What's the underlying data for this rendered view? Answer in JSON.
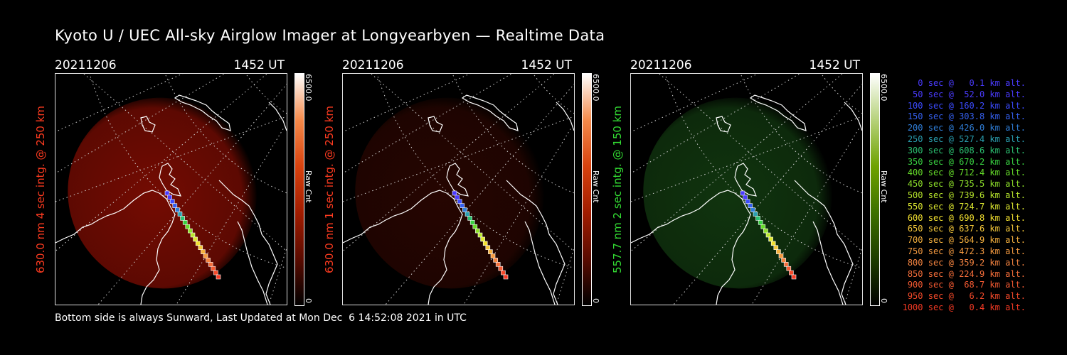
{
  "title": "Kyoto U / UEC All-sky Airglow Imager at Longyearbyen — Realtime Data",
  "footer": "Bottom side is always Sunward, Last Updated at Mon Dec  6 14:52:08 2021 in UTC",
  "panels": [
    {
      "date": "20211206",
      "time": "1452 UT",
      "label": "630.0 nm 4 sec intg. @ 250 km",
      "label_color": "#ff3b20",
      "cbar_max": "6500.0",
      "cbar_min": "0",
      "cbar_unit": "Raw Cnt",
      "glow": "#7a0c02",
      "glow_opacity": 0.95,
      "cbar_colors": [
        "#000000",
        "#5a0b00",
        "#a11c00",
        "#d8420e",
        "#f58a4a",
        "#ffffff"
      ]
    },
    {
      "date": "20211206",
      "time": "1452 UT",
      "label": "630.0 nm 1 sec intg. @ 250 km",
      "label_color": "#ff3b20",
      "cbar_max": "6500.0",
      "cbar_min": "0",
      "cbar_unit": "Raw Cnt",
      "glow": "#2a0601",
      "glow_opacity": 0.9,
      "cbar_colors": [
        "#000000",
        "#5a0b00",
        "#a11c00",
        "#d8420e",
        "#f58a4a",
        "#ffffff"
      ]
    },
    {
      "date": "20211206",
      "time": "1452 UT",
      "label": "557.7 nm 2 sec intg. @ 150 km",
      "label_color": "#33dd33",
      "cbar_max": "6500.0",
      "cbar_min": "0",
      "cbar_unit": "Raw Cnt",
      "glow": "#123a10",
      "glow_opacity": 0.9,
      "cbar_colors": [
        "#000000",
        "#1d3d00",
        "#3d7000",
        "#6ea200",
        "#b6d27a",
        "#ffffff"
      ]
    }
  ],
  "trajectory": [
    {
      "text": "0 sec @   0.1 km alt.",
      "color": "#4a3bff"
    },
    {
      "text": "50 sec @  52.0 km alt.",
      "color": "#4a3bff"
    },
    {
      "text": "100 sec @ 160.2 km alt.",
      "color": "#3b4bff"
    },
    {
      "text": "150 sec @ 303.8 km alt.",
      "color": "#3560f0"
    },
    {
      "text": "200 sec @ 426.0 km alt.",
      "color": "#2f7ed8"
    },
    {
      "text": "250 sec @ 527.4 km alt.",
      "color": "#2a9fb0"
    },
    {
      "text": "300 sec @ 608.6 km alt.",
      "color": "#2bbf70"
    },
    {
      "text": "350 sec @ 670.2 km alt.",
      "color": "#38d040"
    },
    {
      "text": "400 sec @ 712.4 km alt.",
      "color": "#66dd2a"
    },
    {
      "text": "450 sec @ 735.5 km alt.",
      "color": "#8ee02a"
    },
    {
      "text": "500 sec @ 739.6 km alt.",
      "color": "#b8e62c"
    },
    {
      "text": "550 sec @ 724.7 km alt.",
      "color": "#dde830"
    },
    {
      "text": "600 sec @ 690.8 km alt.",
      "color": "#f2e030"
    },
    {
      "text": "650 sec @ 637.6 km alt.",
      "color": "#f5c83a"
    },
    {
      "text": "700 sec @ 564.9 km alt.",
      "color": "#f5b03e"
    },
    {
      "text": "750 sec @ 472.3 km alt.",
      "color": "#f59a40"
    },
    {
      "text": "800 sec @ 359.2 km alt.",
      "color": "#f58440"
    },
    {
      "text": "850 sec @ 224.9 km alt.",
      "color": "#f56e3a"
    },
    {
      "text": "900 sec @  68.7 km alt.",
      "color": "#f55a32"
    },
    {
      "text": "950 sec @   6.2 km alt.",
      "color": "#f54a2a"
    },
    {
      "text": "1000 sec @   0.4 km alt.",
      "color": "#f53a24"
    }
  ]
}
